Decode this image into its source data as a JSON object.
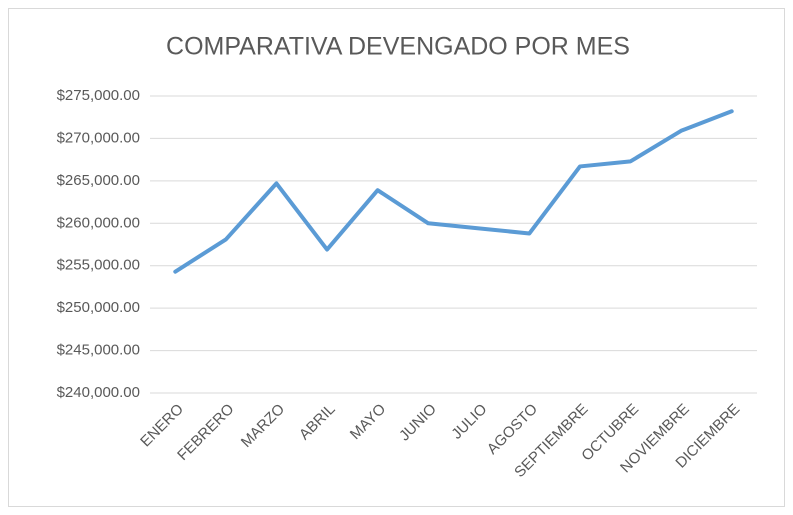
{
  "chart_data": {
    "type": "line",
    "title": "COMPARATIVA DEVENGADO POR MES",
    "categories": [
      "ENERO",
      "FEBRERO",
      "MARZO",
      "ABRIL",
      "MAYO",
      "JUNIO",
      "JULIO",
      "AGOSTO",
      "SEPTIEMBRE",
      "OCTUBRE",
      "NOVIEMBRE",
      "DICIEMBRE"
    ],
    "series": [
      {
        "color": "#5b9bd5",
        "values": [
          254300,
          258100,
          264700,
          256900,
          263900,
          260000,
          259400,
          258800,
          266700,
          267300,
          270900,
          273200
        ]
      }
    ],
    "ylim": [
      240000,
      275000
    ],
    "yticks": [
      {
        "value": 240000,
        "label": "$240,000.00"
      },
      {
        "value": 245000,
        "label": "$245,000.00"
      },
      {
        "value": 250000,
        "label": "$250,000.00"
      },
      {
        "value": 255000,
        "label": "$255,000.00"
      },
      {
        "value": 260000,
        "label": "$260,000.00"
      },
      {
        "value": 265000,
        "label": "$265,000.00"
      },
      {
        "value": 270000,
        "label": "$270,000.00"
      },
      {
        "value": 275000,
        "label": "$275,000.00"
      }
    ],
    "grid": true
  }
}
